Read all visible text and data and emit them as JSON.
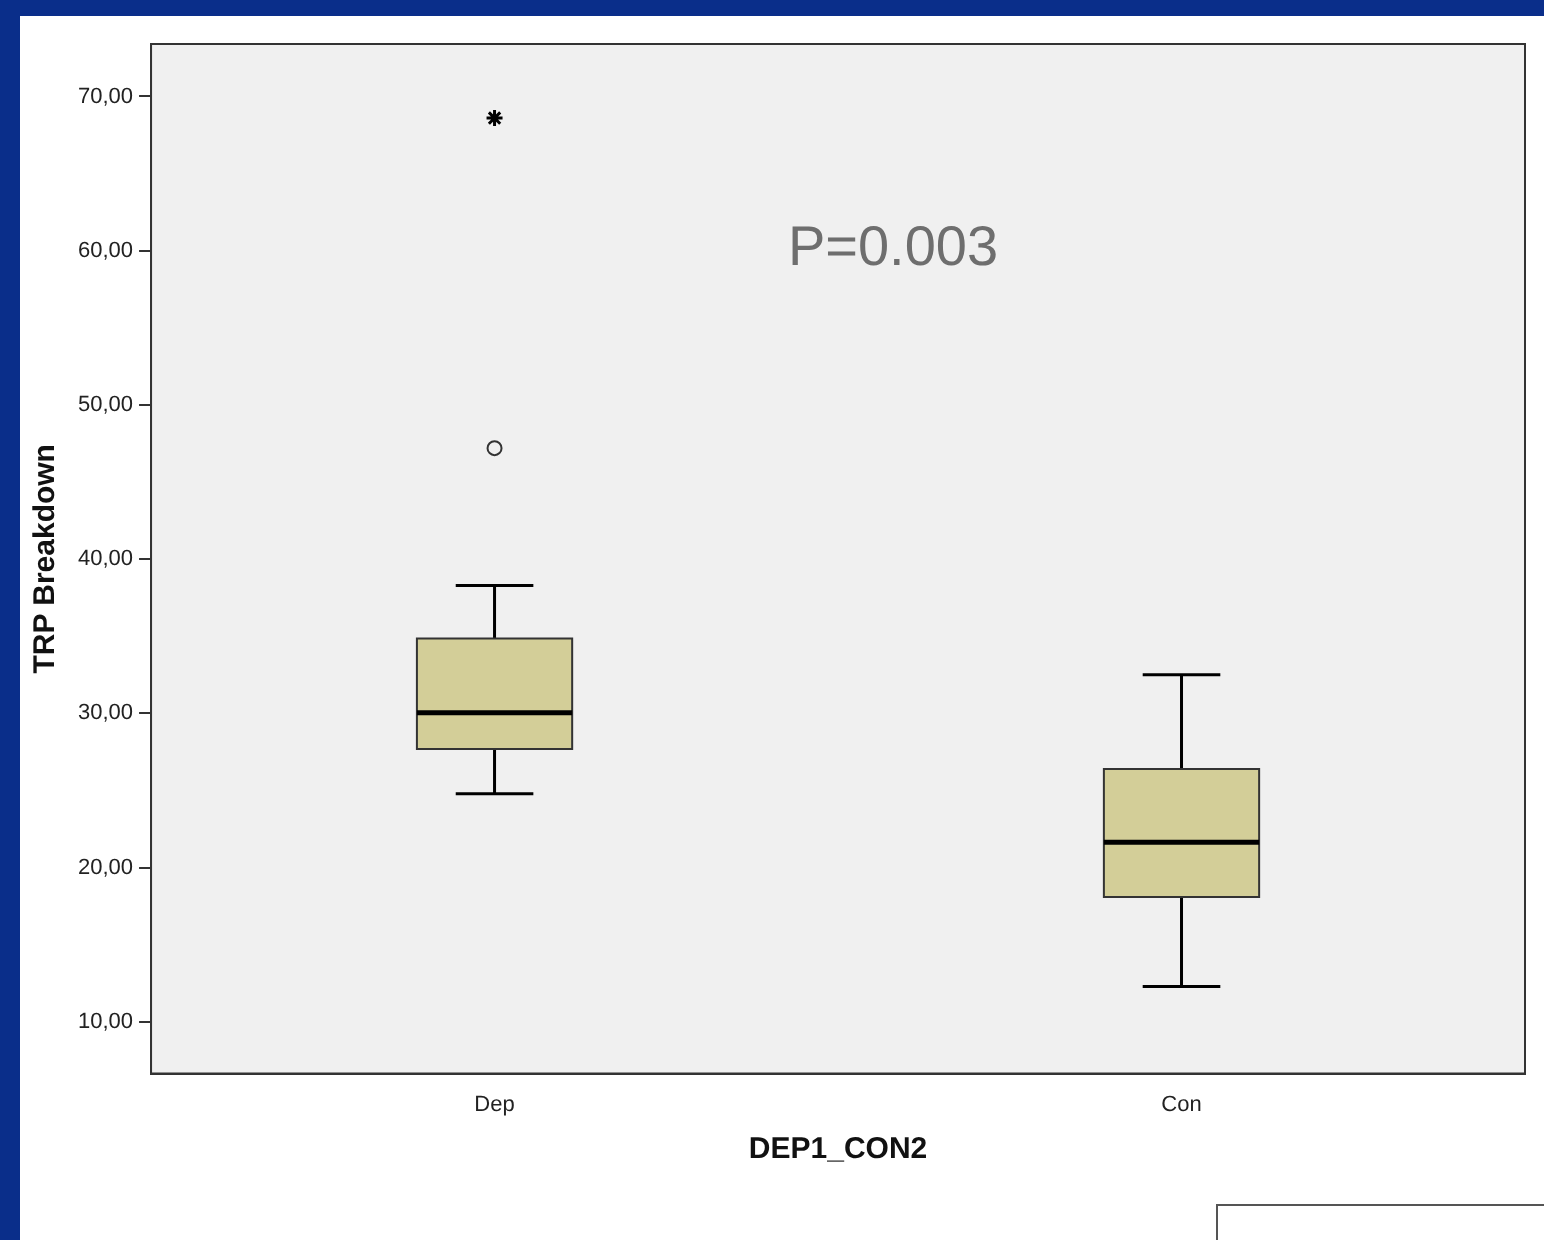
{
  "chart_data": {
    "type": "box",
    "xlabel": "DEP1_CON2",
    "ylabel": "TRP Breakdown",
    "categories": [
      "Dep",
      "Con"
    ],
    "series": [
      {
        "color": "#d3ce98",
        "boxes": [
          {
            "low": 24.8,
            "q1": 27.7,
            "median": 30.05,
            "q3": 34.85,
            "high": 38.3,
            "outliers": [
              47.2
            ]
          },
          {
            "low": 12.3,
            "q1": 18.1,
            "median": 21.65,
            "q3": 26.4,
            "high": 32.5
          }
        ]
      },
      {
        "type": "scatter",
        "color": "#000000",
        "marker": "cross",
        "x": [
          "Dep"
        ],
        "values": [
          68.6
        ]
      }
    ],
    "ylim": [
      6.65,
      73.4
    ],
    "yticks": [
      {
        "value": 10,
        "label": "10,00"
      },
      {
        "value": 20,
        "label": "20,00"
      },
      {
        "value": 30,
        "label": "30,00"
      },
      {
        "value": 40,
        "label": "40,00"
      },
      {
        "value": 50,
        "label": "50,00"
      },
      {
        "value": 60,
        "label": "60,00"
      },
      {
        "value": 70,
        "label": "70,00"
      }
    ],
    "annotations": [
      "P=0.003"
    ],
    "grid": false,
    "legend": false
  }
}
